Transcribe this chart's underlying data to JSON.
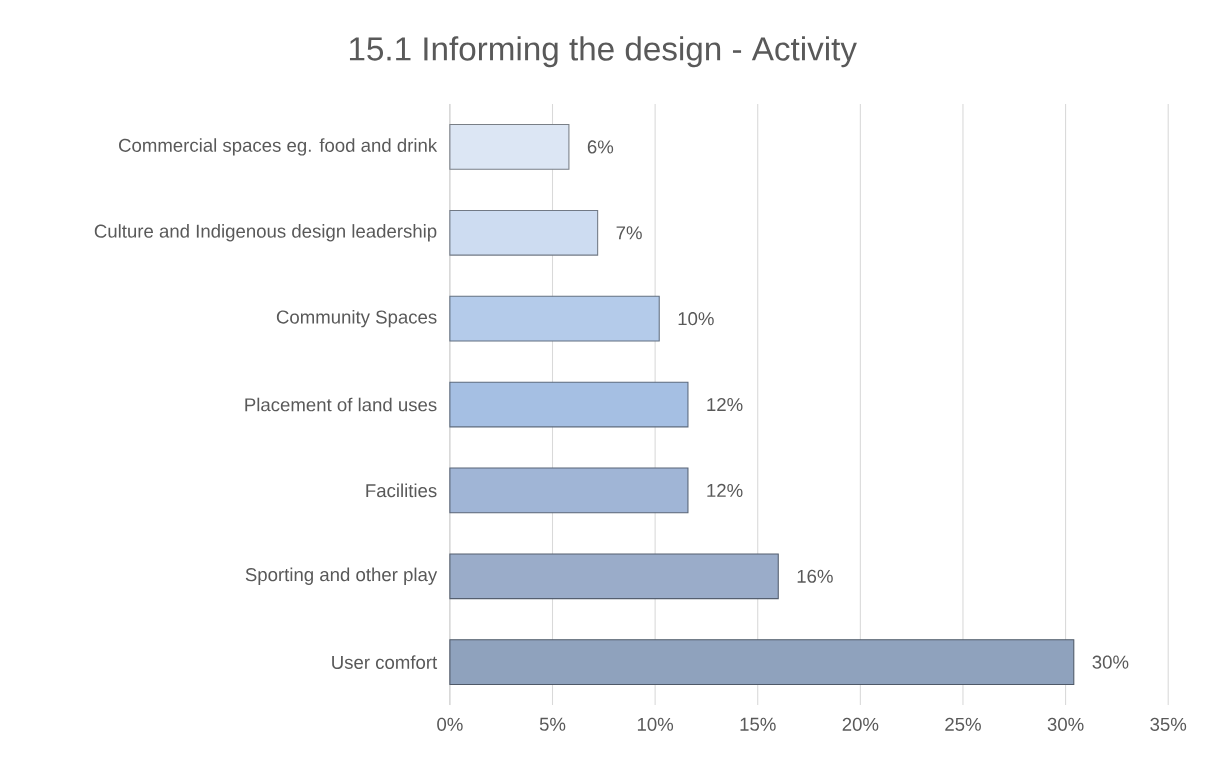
{
  "chart_data": {
    "type": "bar",
    "orientation": "horizontal",
    "title": "15.1 Informing the design - Activity",
    "categories": [
      "Commercial spaces eg. food and drink",
      "Culture and Indigenous design leadership",
      "Community Spaces",
      "Placement of land uses",
      "Facilities",
      "Sporting and other play",
      "User comfort"
    ],
    "values": [
      5.8,
      7.2,
      10.2,
      11.6,
      11.6,
      16.0,
      30.4
    ],
    "value_labels": [
      "6%",
      "7%",
      "10%",
      "12%",
      "12%",
      "16%",
      "30%"
    ],
    "colors": [
      "#dce6f4",
      "#cddcf1",
      "#b4cbea",
      "#a5bfe3",
      "#a0b5d6",
      "#9aacc9",
      "#8fa2bd"
    ],
    "xlim": [
      0,
      35
    ],
    "xticks": [
      {
        "value": 0,
        "label": "0%"
      },
      {
        "value": 5,
        "label": "5%"
      },
      {
        "value": 10,
        "label": "10%"
      },
      {
        "value": 15,
        "label": "15%"
      },
      {
        "value": 20,
        "label": "20%"
      },
      {
        "value": 25,
        "label": "25%"
      },
      {
        "value": 30,
        "label": "30%"
      },
      {
        "value": 35,
        "label": "35%"
      }
    ],
    "grid": "x"
  }
}
